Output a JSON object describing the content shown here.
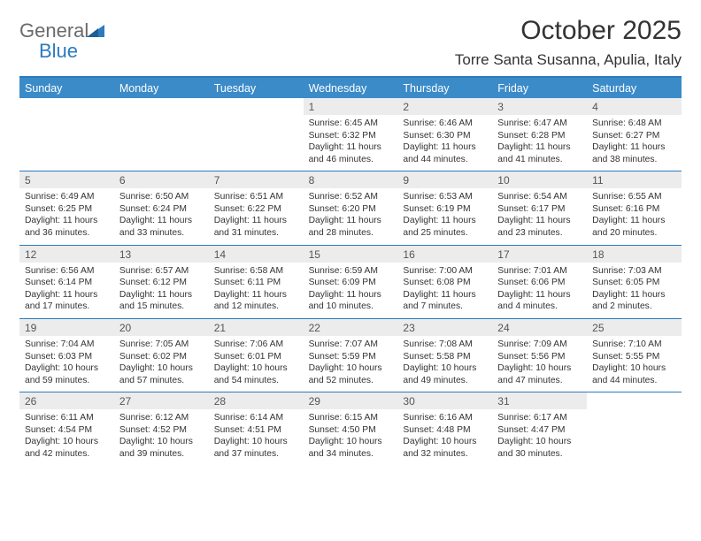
{
  "brand": {
    "word1": "General",
    "word2": "Blue"
  },
  "title": "October 2025",
  "location": "Torre Santa Susanna, Apulia, Italy",
  "colors": {
    "header_bg": "#3b8bc9",
    "header_rule": "#2b7bbf",
    "daynum_bg": "#ececec",
    "text": "#333333",
    "logo_gray": "#6a6a6a",
    "logo_blue": "#2b7bbf",
    "white": "#ffffff"
  },
  "fonts": {
    "body_pt": 10.3,
    "dow_pt": 12.5,
    "title_pt": 30,
    "location_pt": 17
  },
  "dow": [
    "Sunday",
    "Monday",
    "Tuesday",
    "Wednesday",
    "Thursday",
    "Friday",
    "Saturday"
  ],
  "weeks": [
    [
      {
        "n": "",
        "sr": "",
        "ss": "",
        "dl": ""
      },
      {
        "n": "",
        "sr": "",
        "ss": "",
        "dl": ""
      },
      {
        "n": "",
        "sr": "",
        "ss": "",
        "dl": ""
      },
      {
        "n": "1",
        "sr": "6:45 AM",
        "ss": "6:32 PM",
        "dl": "11 hours and 46 minutes."
      },
      {
        "n": "2",
        "sr": "6:46 AM",
        "ss": "6:30 PM",
        "dl": "11 hours and 44 minutes."
      },
      {
        "n": "3",
        "sr": "6:47 AM",
        "ss": "6:28 PM",
        "dl": "11 hours and 41 minutes."
      },
      {
        "n": "4",
        "sr": "6:48 AM",
        "ss": "6:27 PM",
        "dl": "11 hours and 38 minutes."
      }
    ],
    [
      {
        "n": "5",
        "sr": "6:49 AM",
        "ss": "6:25 PM",
        "dl": "11 hours and 36 minutes."
      },
      {
        "n": "6",
        "sr": "6:50 AM",
        "ss": "6:24 PM",
        "dl": "11 hours and 33 minutes."
      },
      {
        "n": "7",
        "sr": "6:51 AM",
        "ss": "6:22 PM",
        "dl": "11 hours and 31 minutes."
      },
      {
        "n": "8",
        "sr": "6:52 AM",
        "ss": "6:20 PM",
        "dl": "11 hours and 28 minutes."
      },
      {
        "n": "9",
        "sr": "6:53 AM",
        "ss": "6:19 PM",
        "dl": "11 hours and 25 minutes."
      },
      {
        "n": "10",
        "sr": "6:54 AM",
        "ss": "6:17 PM",
        "dl": "11 hours and 23 minutes."
      },
      {
        "n": "11",
        "sr": "6:55 AM",
        "ss": "6:16 PM",
        "dl": "11 hours and 20 minutes."
      }
    ],
    [
      {
        "n": "12",
        "sr": "6:56 AM",
        "ss": "6:14 PM",
        "dl": "11 hours and 17 minutes."
      },
      {
        "n": "13",
        "sr": "6:57 AM",
        "ss": "6:12 PM",
        "dl": "11 hours and 15 minutes."
      },
      {
        "n": "14",
        "sr": "6:58 AM",
        "ss": "6:11 PM",
        "dl": "11 hours and 12 minutes."
      },
      {
        "n": "15",
        "sr": "6:59 AM",
        "ss": "6:09 PM",
        "dl": "11 hours and 10 minutes."
      },
      {
        "n": "16",
        "sr": "7:00 AM",
        "ss": "6:08 PM",
        "dl": "11 hours and 7 minutes."
      },
      {
        "n": "17",
        "sr": "7:01 AM",
        "ss": "6:06 PM",
        "dl": "11 hours and 4 minutes."
      },
      {
        "n": "18",
        "sr": "7:03 AM",
        "ss": "6:05 PM",
        "dl": "11 hours and 2 minutes."
      }
    ],
    [
      {
        "n": "19",
        "sr": "7:04 AM",
        "ss": "6:03 PM",
        "dl": "10 hours and 59 minutes."
      },
      {
        "n": "20",
        "sr": "7:05 AM",
        "ss": "6:02 PM",
        "dl": "10 hours and 57 minutes."
      },
      {
        "n": "21",
        "sr": "7:06 AM",
        "ss": "6:01 PM",
        "dl": "10 hours and 54 minutes."
      },
      {
        "n": "22",
        "sr": "7:07 AM",
        "ss": "5:59 PM",
        "dl": "10 hours and 52 minutes."
      },
      {
        "n": "23",
        "sr": "7:08 AM",
        "ss": "5:58 PM",
        "dl": "10 hours and 49 minutes."
      },
      {
        "n": "24",
        "sr": "7:09 AM",
        "ss": "5:56 PM",
        "dl": "10 hours and 47 minutes."
      },
      {
        "n": "25",
        "sr": "7:10 AM",
        "ss": "5:55 PM",
        "dl": "10 hours and 44 minutes."
      }
    ],
    [
      {
        "n": "26",
        "sr": "6:11 AM",
        "ss": "4:54 PM",
        "dl": "10 hours and 42 minutes."
      },
      {
        "n": "27",
        "sr": "6:12 AM",
        "ss": "4:52 PM",
        "dl": "10 hours and 39 minutes."
      },
      {
        "n": "28",
        "sr": "6:14 AM",
        "ss": "4:51 PM",
        "dl": "10 hours and 37 minutes."
      },
      {
        "n": "29",
        "sr": "6:15 AM",
        "ss": "4:50 PM",
        "dl": "10 hours and 34 minutes."
      },
      {
        "n": "30",
        "sr": "6:16 AM",
        "ss": "4:48 PM",
        "dl": "10 hours and 32 minutes."
      },
      {
        "n": "31",
        "sr": "6:17 AM",
        "ss": "4:47 PM",
        "dl": "10 hours and 30 minutes."
      },
      {
        "n": "",
        "sr": "",
        "ss": "",
        "dl": ""
      }
    ]
  ],
  "labels": {
    "sunrise": "Sunrise:",
    "sunset": "Sunset:",
    "daylight": "Daylight:"
  }
}
